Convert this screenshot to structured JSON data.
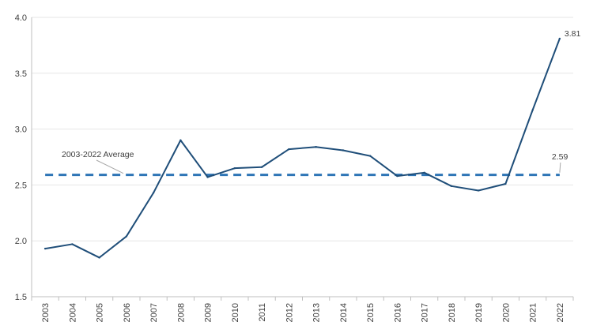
{
  "chart_data": {
    "type": "line",
    "title": "",
    "xlabel": "",
    "ylabel": "",
    "ylim": [
      1.5,
      4.0
    ],
    "y_ticks": [
      "1.5",
      "2.0",
      "2.5",
      "3.0",
      "3.5",
      "4.0"
    ],
    "grid": "horizontal",
    "categories": [
      "2003",
      "2004",
      "2005",
      "2006",
      "2007",
      "2008",
      "2009",
      "2010",
      "2011",
      "2012",
      "2013",
      "2014",
      "2015",
      "2016",
      "2017",
      "2018",
      "2019",
      "2020",
      "2021",
      "2022"
    ],
    "series": [
      {
        "values": [
          1.93,
          1.97,
          1.85,
          2.04,
          2.43,
          2.9,
          2.57,
          2.65,
          2.66,
          2.82,
          2.84,
          2.81,
          2.76,
          2.58,
          2.61,
          2.49,
          2.45,
          2.51,
          3.17,
          3.81
        ],
        "color": "#1f4e79",
        "end_label": "3.81"
      }
    ],
    "average_line": {
      "name": "2003-2022 Average",
      "value": 2.59,
      "value_label": "2.59",
      "color": "#2e75b6",
      "style": "dashed"
    }
  }
}
